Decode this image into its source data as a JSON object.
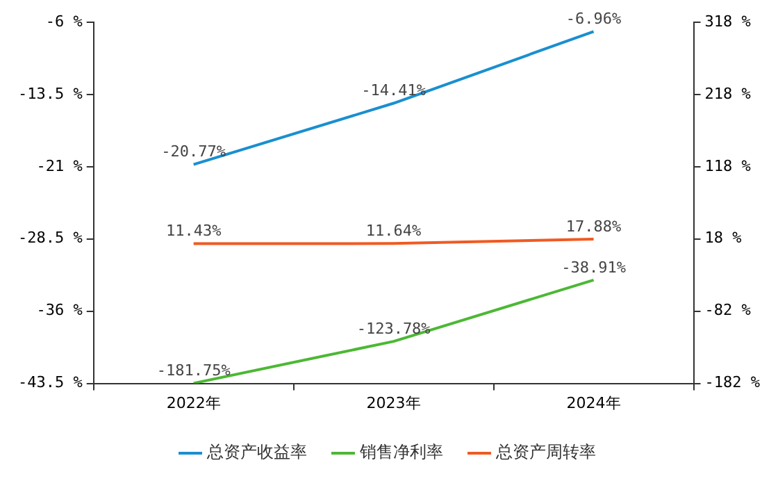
{
  "chart_data": {
    "type": "line",
    "categories": [
      "2022年",
      "2023年",
      "2024年"
    ],
    "series": [
      {
        "name": "总资产收益率",
        "color": "#1a8fd0",
        "values": [
          -20.77,
          -14.41,
          -6.96
        ],
        "value_labels": [
          "-20.77%",
          "-14.41%",
          "-6.96%"
        ]
      },
      {
        "name": "销售净利率",
        "color": "#4cb834",
        "values": [
          -181.75,
          -123.78,
          -38.91
        ],
        "axis": "y2",
        "value_labels": [
          "-181.75%",
          "-123.78%",
          "-38.91%"
        ]
      },
      {
        "name": "总资产周转率",
        "color": "#f05a22",
        "values": [
          11.43,
          11.64,
          17.88
        ],
        "axis": "y2",
        "value_labels": [
          "11.43%",
          "11.64%",
          "17.88%"
        ]
      }
    ],
    "ylim": [
      -43.5,
      -6
    ],
    "yticks": [
      {
        "value": -43.5,
        "label": "-43.5 %"
      },
      {
        "value": -36,
        "label": "-36 %"
      },
      {
        "value": -28.5,
        "label": "-28.5 %"
      },
      {
        "value": -21,
        "label": "-21 %"
      },
      {
        "value": -13.5,
        "label": "-13.5 %"
      },
      {
        "value": -6,
        "label": "-6 %"
      }
    ],
    "y2lim": [
      -182,
      318
    ],
    "y2ticks": [
      {
        "value": -182,
        "label": "-182 %"
      },
      {
        "value": -82,
        "label": "-82 %"
      },
      {
        "value": 18,
        "label": "18 %"
      },
      {
        "value": 118,
        "label": "118 %"
      },
      {
        "value": 218,
        "label": "218 %"
      },
      {
        "value": 318,
        "label": "318 %"
      }
    ],
    "grid": false,
    "legend": "bottom",
    "marker": "none",
    "line_style": "solid"
  }
}
